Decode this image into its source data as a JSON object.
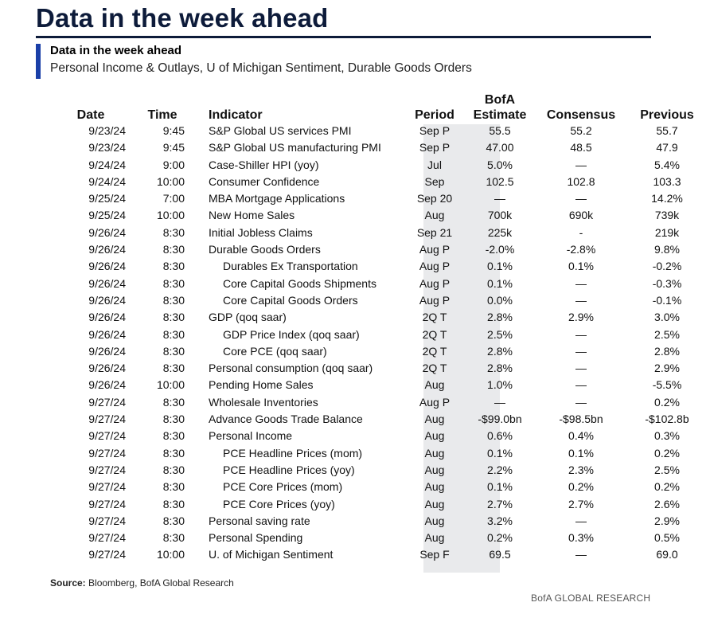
{
  "title": "Data in the week ahead",
  "subtitle": "Data in the week ahead",
  "description": "Personal Income & Outlays, U of Michigan Sentiment, Durable Goods Orders",
  "headers": {
    "date": "Date",
    "time": "Time",
    "indicator": "Indicator",
    "period": "Period",
    "estimate_line1": "BofA",
    "estimate_line2": "Estimate",
    "consensus": "Consensus",
    "previous": "Previous"
  },
  "rows": [
    {
      "date": "9/23/24",
      "time": "9:45",
      "indicator": "S&P Global US services PMI",
      "indent": false,
      "period": "Sep P",
      "estimate": "55.5",
      "consensus": "55.2",
      "previous": "55.7"
    },
    {
      "date": "9/23/24",
      "time": "9:45",
      "indicator": "S&P Global US manufacturing PMI",
      "indent": false,
      "period": "Sep P",
      "estimate": "47.00",
      "consensus": "48.5",
      "previous": "47.9"
    },
    {
      "date": "9/24/24",
      "time": "9:00",
      "indicator": "Case-Shiller HPI (yoy)",
      "indent": false,
      "period": "Jul",
      "estimate": "5.0%",
      "consensus": "—",
      "previous": "5.4%"
    },
    {
      "date": "9/24/24",
      "time": "10:00",
      "indicator": "Consumer Confidence",
      "indent": false,
      "period": "Sep",
      "estimate": "102.5",
      "consensus": "102.8",
      "previous": "103.3"
    },
    {
      "date": "9/25/24",
      "time": "7:00",
      "indicator": "MBA Mortgage Applications",
      "indent": false,
      "period": "Sep 20",
      "estimate": "—",
      "consensus": "—",
      "previous": "14.2%"
    },
    {
      "date": "9/25/24",
      "time": "10:00",
      "indicator": "New Home Sales",
      "indent": false,
      "period": "Aug",
      "estimate": "700k",
      "consensus": "690k",
      "previous": "739k"
    },
    {
      "date": "9/26/24",
      "time": "8:30",
      "indicator": "Initial Jobless Claims",
      "indent": false,
      "period": "Sep 21",
      "estimate": "225k",
      "consensus": "-",
      "previous": "219k"
    },
    {
      "date": "9/26/24",
      "time": "8:30",
      "indicator": "Durable Goods Orders",
      "indent": false,
      "period": "Aug P",
      "estimate": "-2.0%",
      "consensus": "-2.8%",
      "previous": "9.8%"
    },
    {
      "date": "9/26/24",
      "time": "8:30",
      "indicator": "Durables Ex Transportation",
      "indent": true,
      "period": "Aug P",
      "estimate": "0.1%",
      "consensus": "0.1%",
      "previous": "-0.2%"
    },
    {
      "date": "9/26/24",
      "time": "8:30",
      "indicator": "Core Capital Goods Shipments",
      "indent": true,
      "period": "Aug P",
      "estimate": "0.1%",
      "consensus": "—",
      "previous": "-0.3%"
    },
    {
      "date": "9/26/24",
      "time": "8:30",
      "indicator": "Core Capital Goods Orders",
      "indent": true,
      "period": "Aug P",
      "estimate": "0.0%",
      "consensus": "—",
      "previous": "-0.1%"
    },
    {
      "date": "9/26/24",
      "time": "8:30",
      "indicator": "GDP (qoq saar)",
      "indent": false,
      "period": "2Q T",
      "estimate": "2.8%",
      "consensus": "2.9%",
      "previous": "3.0%"
    },
    {
      "date": "9/26/24",
      "time": "8:30",
      "indicator": "GDP Price Index (qoq saar)",
      "indent": true,
      "period": "2Q T",
      "estimate": "2.5%",
      "consensus": "—",
      "previous": "2.5%"
    },
    {
      "date": "9/26/24",
      "time": "8:30",
      "indicator": "Core PCE (qoq saar)",
      "indent": true,
      "period": "2Q T",
      "estimate": "2.8%",
      "consensus": "—",
      "previous": "2.8%"
    },
    {
      "date": "9/26/24",
      "time": "8:30",
      "indicator": "Personal consumption (qoq saar)",
      "indent": false,
      "period": "2Q T",
      "estimate": "2.8%",
      "consensus": "—",
      "previous": "2.9%"
    },
    {
      "date": "9/26/24",
      "time": "10:00",
      "indicator": "Pending Home Sales",
      "indent": false,
      "period": "Aug",
      "estimate": "1.0%",
      "consensus": "—",
      "previous": "-5.5%"
    },
    {
      "date": "9/27/24",
      "time": "8:30",
      "indicator": "Wholesale Inventories",
      "indent": false,
      "period": "Aug P",
      "estimate": "—",
      "consensus": "—",
      "previous": "0.2%"
    },
    {
      "date": "9/27/24",
      "time": "8:30",
      "indicator": "Advance Goods Trade Balance",
      "indent": false,
      "period": "Aug",
      "estimate": "-$99.0bn",
      "consensus": "-$98.5bn",
      "previous": "-$102.8b"
    },
    {
      "date": "9/27/24",
      "time": "8:30",
      "indicator": "Personal Income",
      "indent": false,
      "period": "Aug",
      "estimate": "0.6%",
      "consensus": "0.4%",
      "previous": "0.3%"
    },
    {
      "date": "9/27/24",
      "time": "8:30",
      "indicator": "PCE Headline Prices (mom)",
      "indent": true,
      "period": "Aug",
      "estimate": "0.1%",
      "consensus": "0.1%",
      "previous": "0.2%"
    },
    {
      "date": "9/27/24",
      "time": "8:30",
      "indicator": "PCE Headline Prices (yoy)",
      "indent": true,
      "period": "Aug",
      "estimate": "2.2%",
      "consensus": "2.3%",
      "previous": "2.5%"
    },
    {
      "date": "9/27/24",
      "time": "8:30",
      "indicator": "PCE Core Prices (mom)",
      "indent": true,
      "period": "Aug",
      "estimate": "0.1%",
      "consensus": "0.2%",
      "previous": "0.2%"
    },
    {
      "date": "9/27/24",
      "time": "8:30",
      "indicator": "PCE Core Prices (yoy)",
      "indent": true,
      "period": "Aug",
      "estimate": "2.7%",
      "consensus": "2.7%",
      "previous": "2.6%"
    },
    {
      "date": "9/27/24",
      "time": "8:30",
      "indicator": "Personal saving rate",
      "indent": false,
      "period": "Aug",
      "estimate": "3.2%",
      "consensus": "—",
      "previous": "2.9%"
    },
    {
      "date": "9/27/24",
      "time": "8:30",
      "indicator": "Personal Spending",
      "indent": false,
      "period": "Aug",
      "estimate": "0.2%",
      "consensus": "0.3%",
      "previous": "0.5%"
    },
    {
      "date": "9/27/24",
      "time": "10:00",
      "indicator": "U. of Michigan Sentiment",
      "indent": false,
      "period": "Sep F",
      "estimate": "69.5",
      "consensus": "—",
      "previous": "69.0"
    }
  ],
  "source_label": "Source:",
  "source_text": "Bloomberg, BofA Global Research",
  "brand": "BofA GLOBAL RESEARCH",
  "colors": {
    "title": "#0d1b3a",
    "accent": "#1a3fa8",
    "estimate_shade": "#e9eaec"
  }
}
